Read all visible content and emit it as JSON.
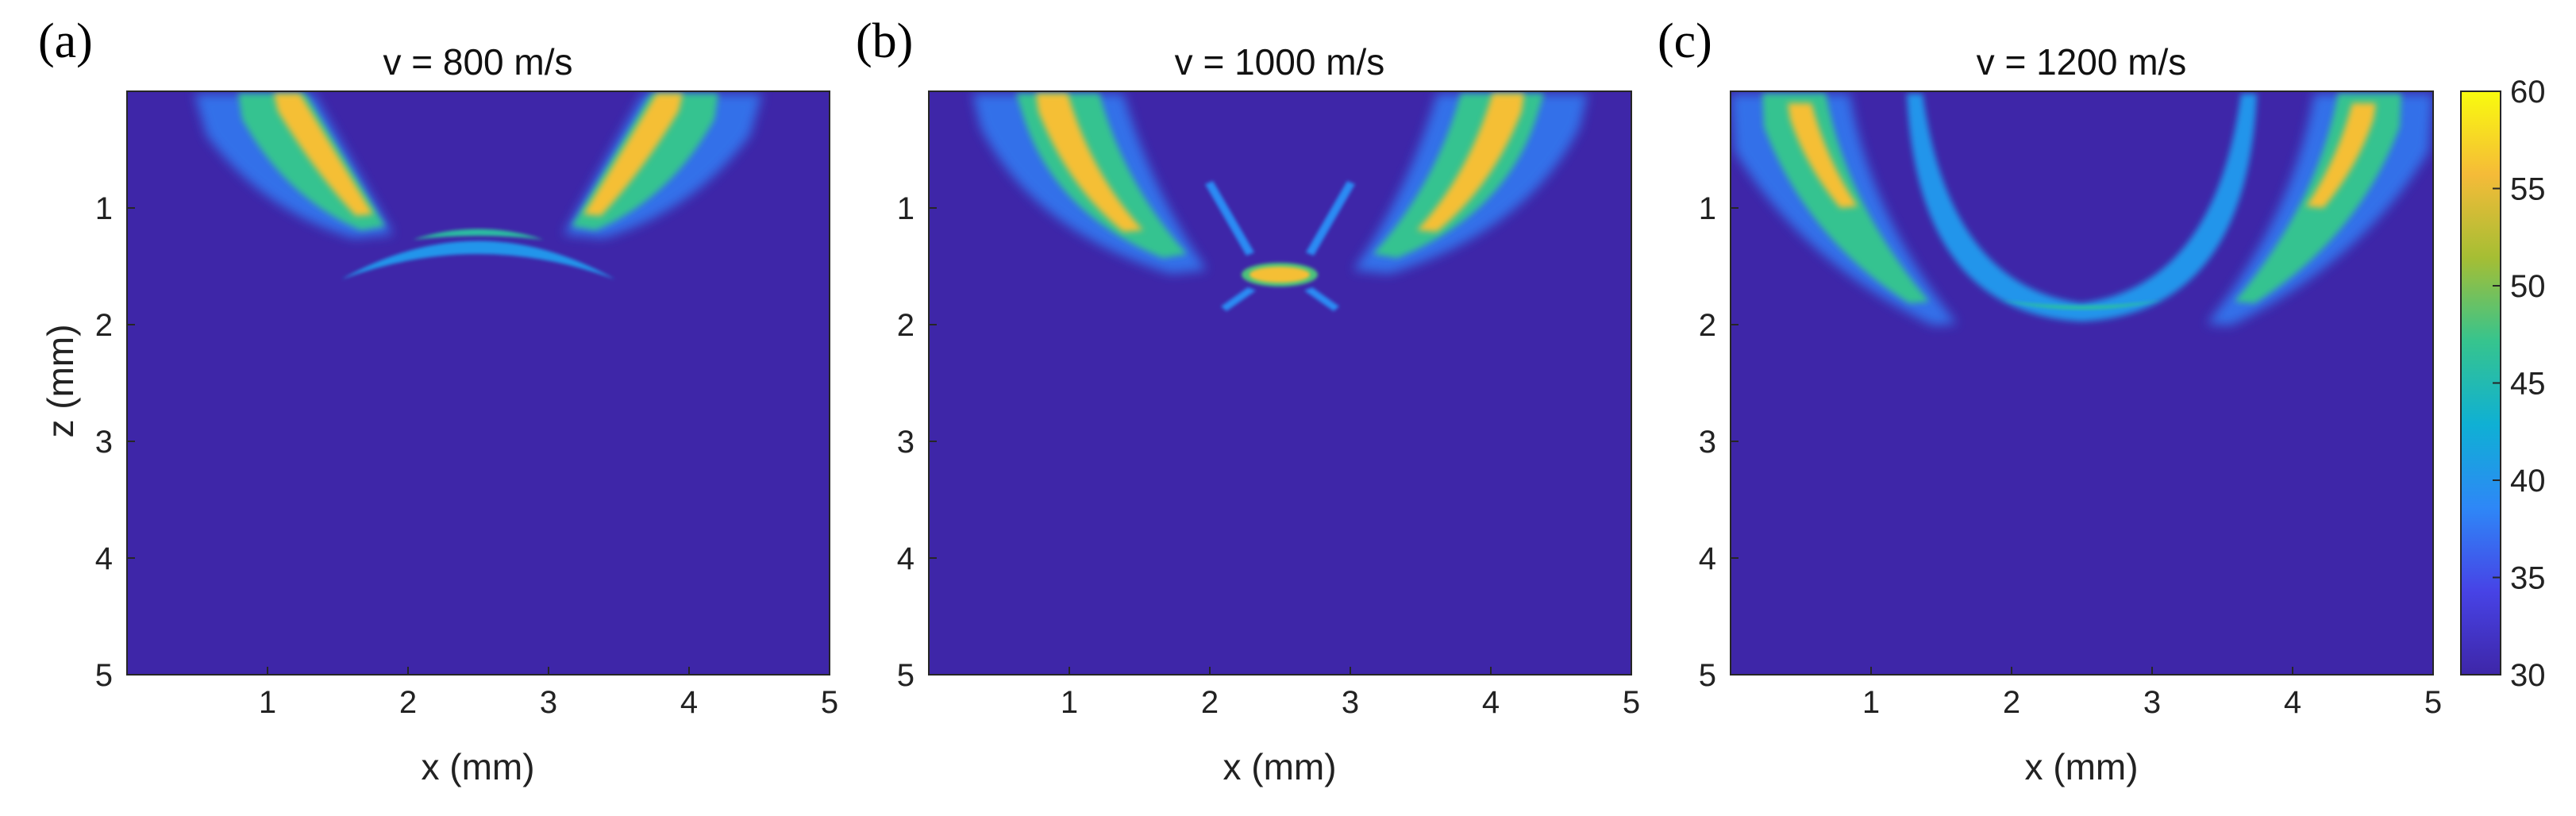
{
  "chart_data": [
    {
      "type": "heatmap",
      "panel_label": "(a)",
      "title": "v = 800 m/s",
      "xlabel": "x (mm)",
      "ylabel": "z (mm)",
      "xlim": [
        0,
        5
      ],
      "ylim": [
        0,
        5
      ],
      "y_reversed": true,
      "xticks": [
        "1",
        "2",
        "3",
        "4",
        "5"
      ],
      "yticks": [
        "1",
        "2",
        "3",
        "4",
        "5"
      ],
      "regions": {
        "beams": [
          {
            "x_top": 1.25,
            "z_top": 0.05,
            "x_bottom": 1.9,
            "z_bottom": 1.2,
            "peak": 58
          },
          {
            "x_top": 3.75,
            "z_top": 0.05,
            "x_bottom": 3.1,
            "z_bottom": 1.2,
            "peak": 58
          }
        ],
        "focus_arc": {
          "x_from": 1.5,
          "x_to": 3.5,
          "z_center": 1.25,
          "z_edges": 1.6,
          "peak": 46
        }
      }
    },
    {
      "type": "heatmap",
      "panel_label": "(b)",
      "title": "v = 1000 m/s",
      "xlabel": "x (mm)",
      "xlim": [
        0,
        5
      ],
      "ylim": [
        0,
        5
      ],
      "y_reversed": true,
      "xticks": [
        "1",
        "2",
        "3",
        "4",
        "5"
      ],
      "yticks": [
        "1",
        "2",
        "3",
        "4",
        "5"
      ],
      "regions": {
        "beams": [
          {
            "x_top": 0.85,
            "z_top": 0.05,
            "x_bottom": 1.95,
            "z_bottom": 1.5,
            "peak": 57
          },
          {
            "x_top": 4.15,
            "z_top": 0.05,
            "x_bottom": 3.05,
            "z_bottom": 1.5,
            "peak": 57
          }
        ],
        "focus_spot": {
          "x": 2.5,
          "z": 1.55,
          "peak": 56
        }
      }
    },
    {
      "type": "heatmap",
      "panel_label": "(c)",
      "title": "v = 1200 m/s",
      "xlabel": "x (mm)",
      "xlim": [
        0,
        5
      ],
      "ylim": [
        0,
        5
      ],
      "y_reversed": true,
      "xticks": [
        "1",
        "2",
        "3",
        "4",
        "5"
      ],
      "yticks": [
        "1",
        "2",
        "3",
        "4",
        "5"
      ],
      "regions": {
        "beams": [
          {
            "x_top": 0.55,
            "z_top": 0.05,
            "x_bottom": 1.75,
            "z_bottom": 1.9,
            "peak": 56
          },
          {
            "x_top": 4.45,
            "z_top": 0.05,
            "x_bottom": 3.25,
            "z_bottom": 1.9,
            "peak": 56
          }
        ],
        "u_arc": {
          "x_left": 1.3,
          "x_right": 3.7,
          "z_top": 0.05,
          "z_bottom": 1.85,
          "peak": 42
        }
      }
    }
  ],
  "colorbar": {
    "min": 30,
    "max": 60,
    "ticks": [
      "30",
      "35",
      "40",
      "45",
      "50",
      "55",
      "60"
    ],
    "colormap": "parula",
    "background_color": "#3e26a8",
    "colors": [
      "#3e26a8",
      "#4743e6",
      "#2e87f7",
      "#0fb0d4",
      "#36c48e",
      "#a5be34",
      "#f5bb38",
      "#f9fb0e"
    ]
  }
}
